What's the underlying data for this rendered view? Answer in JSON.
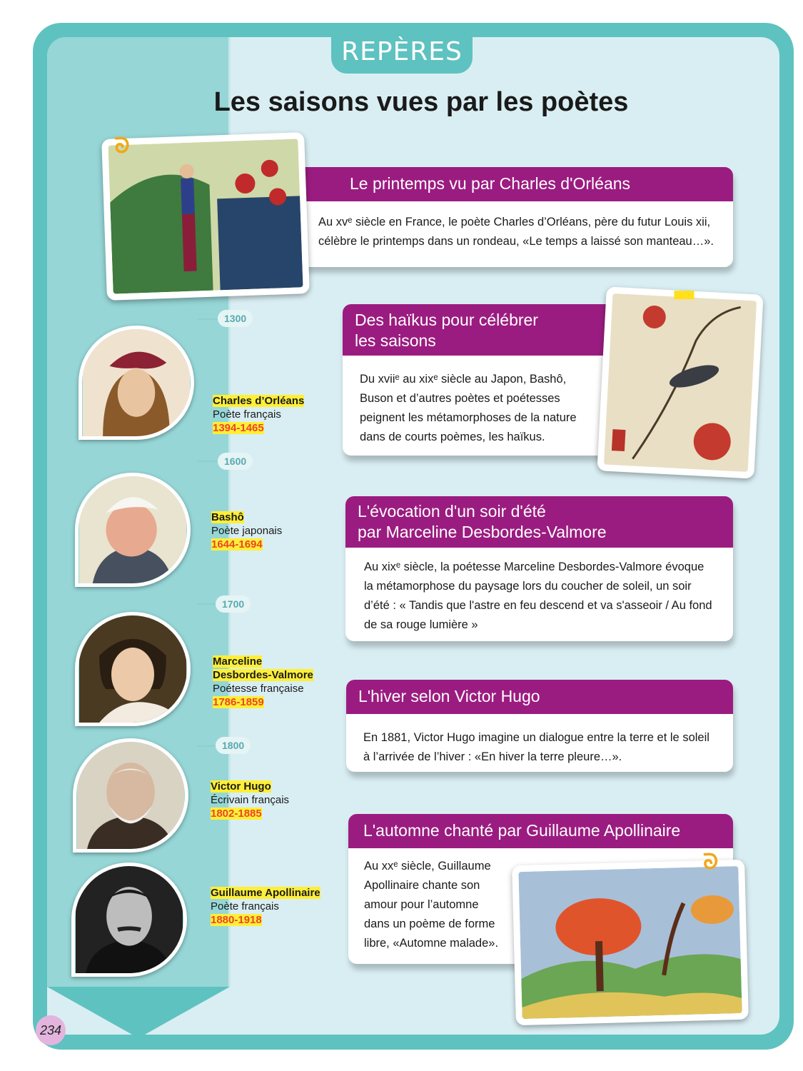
{
  "header": {
    "tab_label": "REPÈRES",
    "title": "Les saisons vues par les poètes"
  },
  "timeline": {
    "years": [
      "1300",
      "1600",
      "1700",
      "1800"
    ],
    "poets": [
      {
        "name": "Charles d’Orléans",
        "role": "Poète français",
        "dates": "1394-1465"
      },
      {
        "name": "Bashô",
        "role": "Poète japonais",
        "dates": "1644-1694"
      },
      {
        "name_line1": "Marceline",
        "name_line2": "Desbordes-Valmore",
        "role": "Poétesse française",
        "dates": "1786-1859"
      },
      {
        "name": "Victor Hugo",
        "role": "Écrivain français",
        "dates": "1802-1885"
      },
      {
        "name": "Guillaume Apollinaire",
        "role": "Poète français",
        "dates": "1880-1918"
      }
    ]
  },
  "cards": [
    {
      "title": "Le printemps vu par Charles d'Orléans",
      "lines": [
        "Au xvᵉ siècle en France, le poète Charles d’Orléans, père du futur Louis xii,",
        "célèbre le printemps dans un rondeau, «Le temps a laissé son manteau…»."
      ]
    },
    {
      "title_line1": "Des haïkus pour célébrer",
      "title_line2": "les saisons",
      "lines": [
        "Du xviiᵉ au xixᵉ siècle au Japon, Bashô,",
        "Buson et d’autres poètes et poétesses",
        "peignent les métamorphoses de la nature",
        "dans de courts poèmes, les haïkus."
      ]
    },
    {
      "title_line1": "L'évocation d'un soir d'été",
      "title_line2": "par Marceline Desbordes-Valmore",
      "lines": [
        "Au xixᵉ siècle, la poétesse Marceline Desbordes-Valmore évoque",
        "la métamorphose du paysage lors du coucher de soleil, un soir",
        "d’été : « Tandis que l'astre en feu descend et va s'asseoir / Au fond",
        "de sa rouge lumière »"
      ]
    },
    {
      "title": "L'hiver selon Victor Hugo",
      "lines": [
        "En 1881, Victor Hugo imagine un dialogue entre la terre et le soleil",
        "à l’arrivée de l’hiver : «En hiver la terre pleure…»."
      ]
    },
    {
      "title": "L'automne chanté par Guillaume Apollinaire",
      "lines": [
        "Au xxᵉ siècle, Guillaume",
        "Apollinaire chante son",
        "amour pour l’automne",
        "dans un poème de forme",
        "libre, «Automne malade»."
      ]
    }
  ],
  "page_number": "234",
  "colors": {
    "teal": "#5ec2c0",
    "magenta": "#9b1c80",
    "background": "#d9eef3",
    "highlight": "#ffef36",
    "date_red": "#e8462a"
  }
}
